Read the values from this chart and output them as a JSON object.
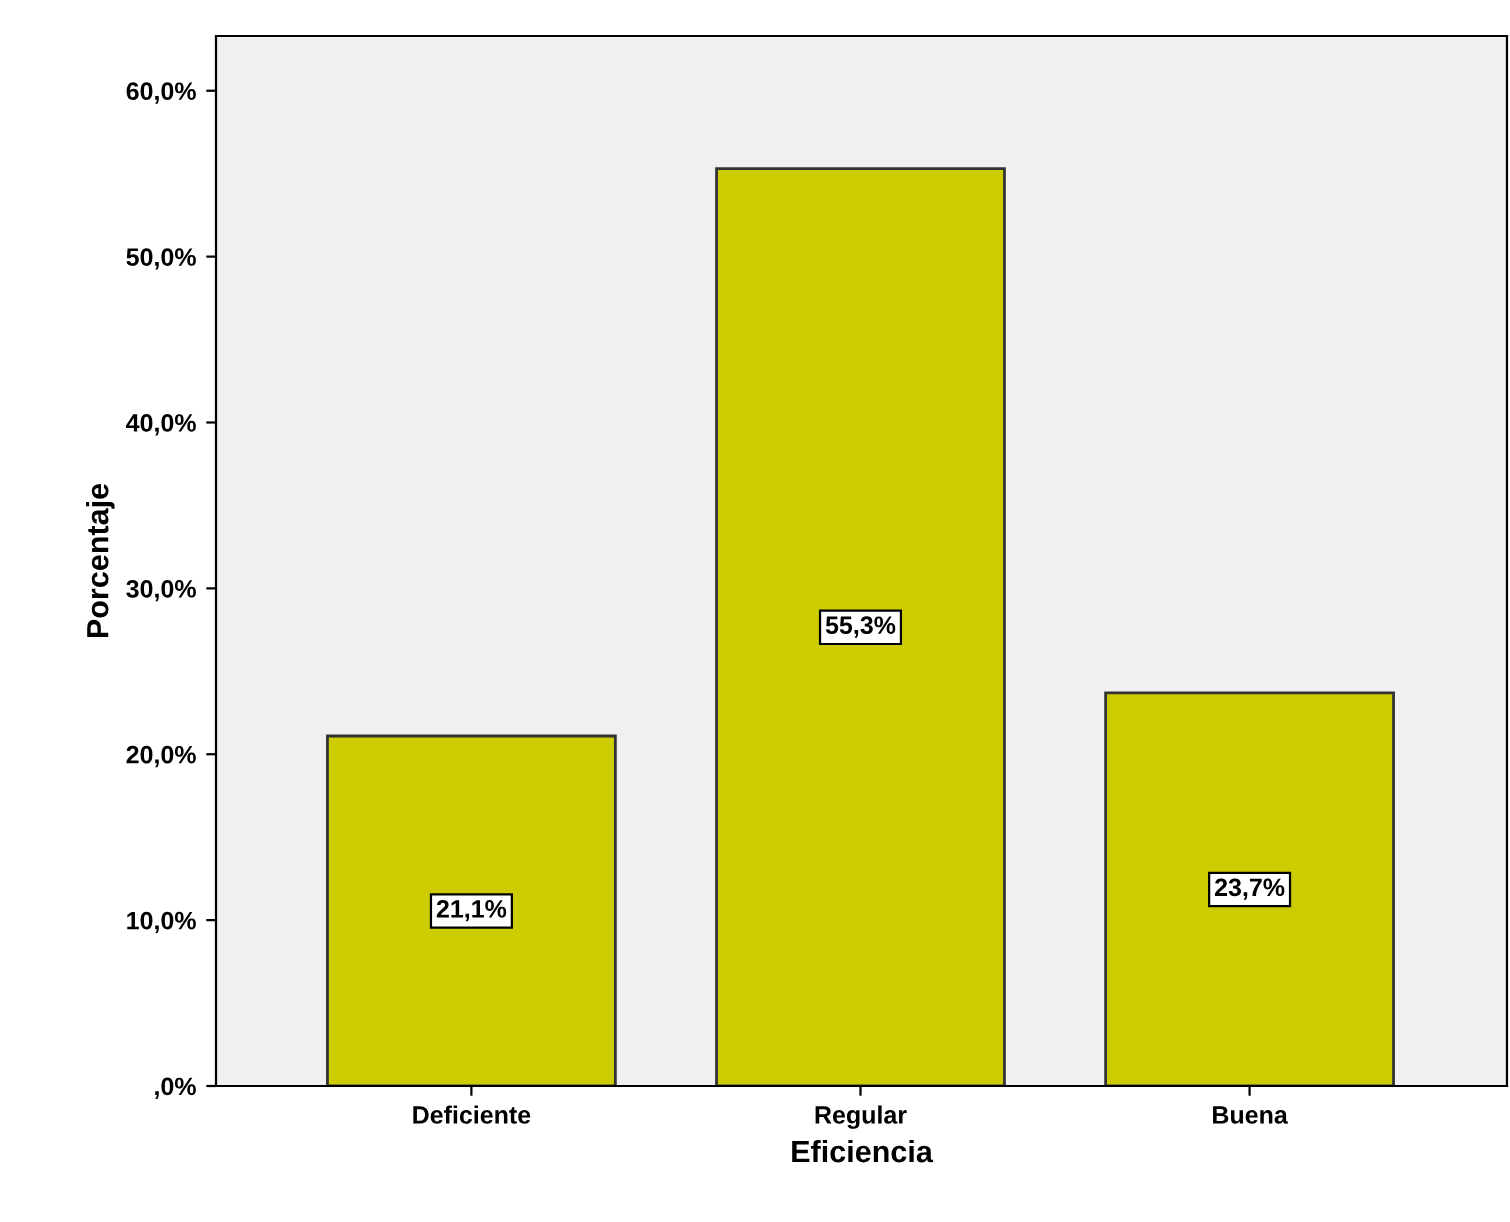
{
  "chart_data": {
    "type": "bar",
    "xlabel": "Eficiencia",
    "ylabel": "Porcentaje",
    "categories": [
      "Deficiente",
      "Regular",
      "Buena"
    ],
    "values": [
      21.1,
      55.3,
      23.7
    ],
    "value_labels": [
      "21,1%",
      "55,3%",
      "23,7%"
    ],
    "color": "#cccc00",
    "ylim": [
      0,
      63.3
    ],
    "yticks": [
      {
        "value": 0,
        "label": ",0%"
      },
      {
        "value": 10,
        "label": "10,0%"
      },
      {
        "value": 20,
        "label": "20,0%"
      },
      {
        "value": 30,
        "label": "30,0%"
      },
      {
        "value": 40,
        "label": "40,0%"
      },
      {
        "value": 50,
        "label": "50,0%"
      },
      {
        "value": 60,
        "label": "60,0%"
      }
    ],
    "grid": false,
    "legend": false
  }
}
